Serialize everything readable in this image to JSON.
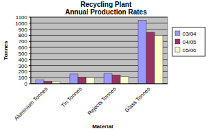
{
  "chart_data": {
    "type": "bar",
    "title": "Recycling Plant",
    "subtitle": "Annual Production Rates",
    "x_label": "Material",
    "y_label": "Tonnes",
    "categories": [
      "Aluminium Tonnes",
      "Tin Tonnes",
      "Rejects Tonnes",
      "Glass Tonnes"
    ],
    "series": [
      {
        "name": "03/04",
        "color": "#9999ff",
        "values": [
          60,
          160,
          170,
          1050
        ]
      },
      {
        "name": "04/05",
        "color": "#993366",
        "values": [
          40,
          110,
          145,
          850
        ]
      },
      {
        "name": "05/06",
        "color": "#ffffcc",
        "values": [
          30,
          100,
          115,
          800
        ]
      }
    ],
    "ylim": [
      0,
      1100
    ],
    "yticks": [
      0,
      100,
      200,
      300,
      400,
      500,
      600,
      700,
      800,
      900,
      1000,
      1100
    ],
    "grid": true,
    "legend": "right"
  }
}
